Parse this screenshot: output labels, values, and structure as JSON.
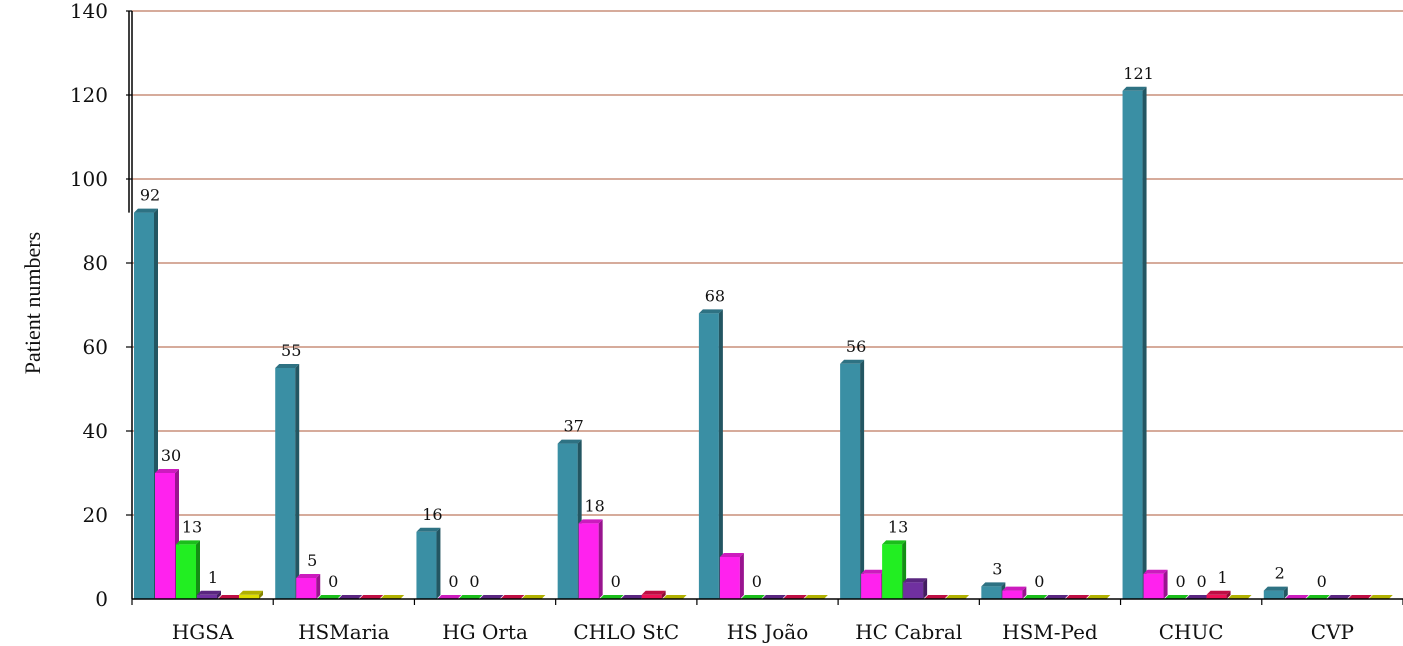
{
  "chart_data": {
    "type": "bar",
    "ylabel": "Patient numbers",
    "xlabel": "",
    "ylim": [
      0,
      140
    ],
    "yticks": [
      "0",
      "20",
      "40",
      "60",
      "80",
      "100",
      "120",
      "140"
    ],
    "grid": true,
    "categories": [
      "HGSA",
      "HSMaria",
      "HG Orta",
      "CHLO StC",
      "HS João",
      "HC Cabral",
      "HSM-Ped",
      "CHUC",
      "CVP"
    ],
    "series": [
      {
        "color": "#3a8fa4",
        "values": [
          92,
          55,
          16,
          37,
          68,
          56,
          3,
          121,
          2
        ]
      },
      {
        "color": "#ff22ee",
        "values": [
          30,
          5,
          0,
          18,
          10,
          6,
          2,
          6,
          0
        ]
      },
      {
        "color": "#22ee22",
        "values": [
          13,
          0,
          0,
          0,
          0,
          13,
          0,
          0,
          0
        ]
      },
      {
        "color": "#7030a0",
        "values": [
          1,
          0,
          0,
          0,
          0,
          4,
          0,
          0,
          0
        ]
      },
      {
        "color": "#ee1155",
        "values": [
          0,
          0,
          0,
          1,
          0,
          0,
          0,
          1,
          0
        ]
      },
      {
        "color": "#dddd00",
        "values": [
          1,
          0,
          0,
          0,
          0,
          0,
          0,
          0,
          0
        ]
      }
    ],
    "data_labels": [
      {
        "category": 0,
        "series": 0,
        "text": "92"
      },
      {
        "category": 0,
        "series": 1,
        "text": "30"
      },
      {
        "category": 0,
        "series": 2,
        "text": "13"
      },
      {
        "category": 0,
        "series": 3,
        "text": "1"
      },
      {
        "category": 1,
        "series": 0,
        "text": "55"
      },
      {
        "category": 1,
        "series": 1,
        "text": "5"
      },
      {
        "category": 1,
        "series": 2,
        "text": "0"
      },
      {
        "category": 2,
        "series": 0,
        "text": "16"
      },
      {
        "category": 2,
        "series": 1,
        "text": "0"
      },
      {
        "category": 2,
        "series": 2,
        "text": "0"
      },
      {
        "category": 3,
        "series": 0,
        "text": "37"
      },
      {
        "category": 3,
        "series": 1,
        "text": "18"
      },
      {
        "category": 3,
        "series": 2,
        "text": "0"
      },
      {
        "category": 4,
        "series": 0,
        "text": "68"
      },
      {
        "category": 4,
        "series": 2,
        "text": "0"
      },
      {
        "category": 5,
        "series": 0,
        "text": "56"
      },
      {
        "category": 5,
        "series": 2,
        "text": "13"
      },
      {
        "category": 6,
        "series": 0,
        "text": "3"
      },
      {
        "category": 6,
        "series": 2,
        "text": "0"
      },
      {
        "category": 7,
        "series": 0,
        "text": "121"
      },
      {
        "category": 7,
        "series": 2,
        "text": "0"
      },
      {
        "category": 7,
        "series": 3,
        "text": "0"
      },
      {
        "category": 7,
        "series": 4,
        "text": "1"
      },
      {
        "category": 8,
        "series": 0,
        "text": "2"
      },
      {
        "category": 8,
        "series": 2,
        "text": "0"
      }
    ]
  }
}
